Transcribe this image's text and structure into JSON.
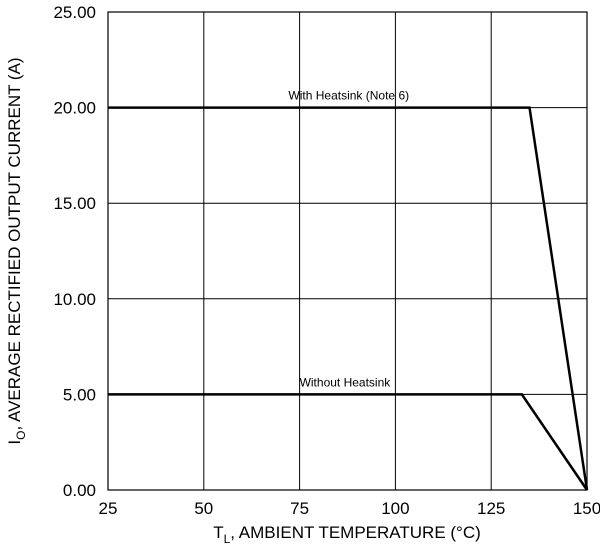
{
  "chart_data": {
    "type": "line",
    "xlabel_prefix": "T",
    "xlabel_sub": "L",
    "xlabel_rest": ", AMBIENT TEMPERATURE (°C)",
    "ylabel_prefix": "I",
    "ylabel_sub": "O",
    "ylabel_rest": ", AVERAGE RECTIFIED OUTPUT CURRENT (A)",
    "xlim": [
      25,
      150
    ],
    "ylim": [
      0,
      25
    ],
    "x_ticks": [
      "25",
      "50",
      "75",
      "100",
      "125",
      "150"
    ],
    "y_ticks": [
      "0.00",
      "5.00",
      "10.00",
      "15.00",
      "20.00",
      "25.00"
    ],
    "grid": true,
    "series": [
      {
        "name": "With Heatsink (Note 6)",
        "points": [
          [
            25,
            20
          ],
          [
            135,
            20
          ],
          [
            150,
            0
          ]
        ]
      },
      {
        "name": "Without Heatsink",
        "points": [
          [
            25,
            5
          ],
          [
            133,
            5
          ],
          [
            150,
            0
          ]
        ]
      }
    ]
  }
}
